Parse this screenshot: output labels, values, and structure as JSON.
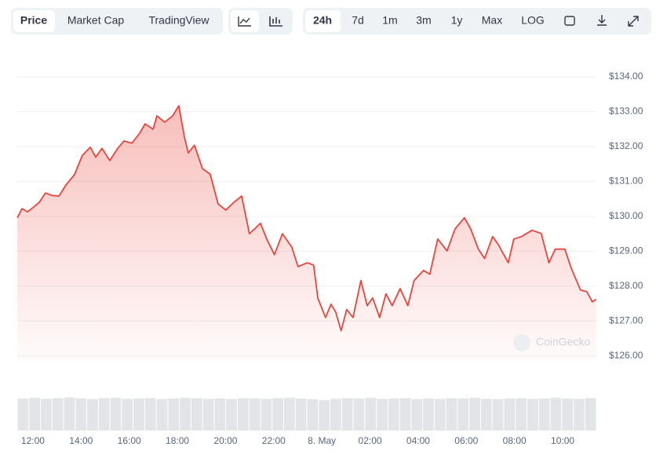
{
  "toolbar": {
    "views": [
      "Price",
      "Market Cap",
      "TradingView"
    ],
    "ranges": [
      "24h",
      "7d",
      "1m",
      "3m",
      "1y",
      "Max",
      "LOG"
    ]
  },
  "watermark": "CoinGecko",
  "chart_data": {
    "type": "area",
    "x": [
      11.35,
      11.55,
      11.77,
      12.0,
      12.26,
      12.52,
      12.78,
      13.08,
      13.37,
      13.73,
      14.05,
      14.38,
      14.61,
      14.87,
      15.19,
      15.52,
      15.78,
      16.11,
      16.43,
      16.66,
      16.99,
      17.15,
      17.47,
      17.8,
      18.06,
      18.29,
      18.45,
      18.71,
      19.04,
      19.36,
      19.69,
      20.01,
      20.34,
      20.67,
      20.99,
      21.45,
      21.71,
      22.03,
      22.36,
      22.75,
      23.01,
      23.4,
      23.66,
      23.83,
      24.15,
      24.38,
      24.57,
      24.8,
      25.03,
      25.29,
      25.62,
      25.88,
      26.11,
      26.4,
      26.66,
      26.92,
      27.25,
      27.57,
      27.83,
      28.22,
      28.48,
      28.81,
      29.2,
      29.53,
      29.92,
      30.18,
      30.5,
      30.76,
      31.09,
      31.32,
      31.74,
      31.97,
      32.29,
      32.72,
      33.11,
      33.43,
      33.69,
      34.09,
      34.35,
      34.74,
      35.0,
      35.23,
      35.39
    ],
    "series": [
      {
        "name": "Price",
        "color": "#e8453c",
        "values": [
          129.96,
          130.22,
          130.13,
          130.25,
          130.4,
          130.67,
          130.6,
          130.58,
          130.9,
          131.2,
          131.75,
          131.98,
          131.7,
          131.95,
          131.6,
          131.95,
          132.16,
          132.1,
          132.38,
          132.65,
          132.5,
          132.88,
          132.7,
          132.88,
          133.17,
          132.27,
          131.82,
          132.04,
          131.37,
          131.21,
          130.36,
          130.18,
          130.4,
          130.58,
          129.5,
          129.8,
          129.35,
          128.9,
          129.5,
          129.12,
          128.56,
          128.67,
          128.6,
          127.66,
          127.1,
          127.48,
          127.26,
          126.72,
          127.33,
          127.1,
          128.16,
          127.44,
          127.66,
          127.1,
          127.78,
          127.44,
          127.93,
          127.44,
          128.16,
          128.45,
          128.34,
          129.35,
          129.01,
          129.64,
          129.96,
          129.64,
          129.06,
          128.79,
          129.42,
          129.2,
          128.67,
          129.35,
          129.42,
          129.6,
          129.51,
          128.67,
          129.06,
          129.06,
          128.52,
          127.89,
          127.84,
          127.55,
          127.62
        ]
      }
    ],
    "xlim": [
      11.35,
      35.4
    ],
    "xticks": [
      {
        "value": 12,
        "label": "12:00"
      },
      {
        "value": 14,
        "label": "14:00"
      },
      {
        "value": 16,
        "label": "16:00"
      },
      {
        "value": 18,
        "label": "18:00"
      },
      {
        "value": 20,
        "label": "20:00"
      },
      {
        "value": 22,
        "label": "22:00"
      },
      {
        "value": 24,
        "label": "8. May"
      },
      {
        "value": 26,
        "label": "02:00"
      },
      {
        "value": 28,
        "label": "04:00"
      },
      {
        "value": 30,
        "label": "06:00"
      },
      {
        "value": 32,
        "label": "08:00"
      },
      {
        "value": 34,
        "label": "10:00"
      }
    ],
    "ylim": [
      125.85,
      134.4
    ],
    "yticks": [
      {
        "value": 126,
        "label": "$126.00"
      },
      {
        "value": 127,
        "label": "$127.00"
      },
      {
        "value": 128,
        "label": "$128.00"
      },
      {
        "value": 129,
        "label": "$129.00"
      },
      {
        "value": 130,
        "label": "$130.00"
      },
      {
        "value": 131,
        "label": "$131.00"
      },
      {
        "value": 132,
        "label": "$132.00"
      },
      {
        "value": 133,
        "label": "$133.00"
      },
      {
        "value": 134,
        "label": "$134.00"
      }
    ],
    "grid": true,
    "volume": {
      "color": "#e3e4e8",
      "lim": [
        0,
        1
      ],
      "values": [
        0.95,
        0.97,
        0.94,
        0.96,
        0.98,
        0.95,
        0.93,
        0.96,
        0.97,
        0.94,
        0.95,
        0.96,
        0.93,
        0.95,
        0.97,
        0.96,
        0.94,
        0.95,
        0.93,
        0.96,
        0.95,
        0.94,
        0.96,
        0.97,
        0.95,
        0.93,
        0.9,
        0.94,
        0.96,
        0.95,
        0.97,
        0.94,
        0.95,
        0.96,
        0.93,
        0.95,
        0.94,
        0.96,
        0.95,
        0.97,
        0.94,
        0.93,
        0.95,
        0.96,
        0.94,
        0.95,
        0.97,
        0.95,
        0.94,
        0.96
      ]
    }
  }
}
